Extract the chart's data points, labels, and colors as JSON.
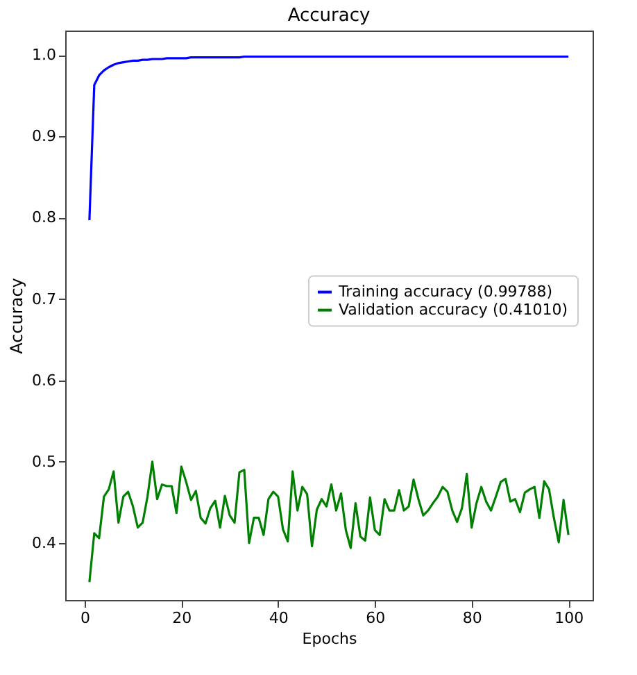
{
  "chart_data": {
    "type": "line",
    "title": "Accuracy",
    "xlabel": "Epochs",
    "ylabel": "Accuracy",
    "x": [
      1,
      2,
      3,
      4,
      5,
      6,
      7,
      8,
      9,
      10,
      11,
      12,
      13,
      14,
      15,
      16,
      17,
      18,
      19,
      20,
      21,
      22,
      23,
      24,
      25,
      26,
      27,
      28,
      29,
      30,
      31,
      32,
      33,
      34,
      35,
      36,
      37,
      38,
      39,
      40,
      41,
      42,
      43,
      44,
      45,
      46,
      47,
      48,
      49,
      50,
      51,
      52,
      53,
      54,
      55,
      56,
      57,
      58,
      59,
      60,
      61,
      62,
      63,
      64,
      65,
      66,
      67,
      68,
      69,
      70,
      71,
      72,
      73,
      74,
      75,
      76,
      77,
      78,
      79,
      80,
      81,
      82,
      83,
      84,
      85,
      86,
      87,
      88,
      89,
      90,
      91,
      92,
      93,
      94,
      95,
      96,
      97,
      98,
      99,
      100
    ],
    "series": [
      {
        "name": "Training accuracy (0.99788)",
        "color": "#0000ff",
        "values": [
          0.797,
          0.963,
          0.975,
          0.981,
          0.985,
          0.988,
          0.99,
          0.991,
          0.992,
          0.993,
          0.993,
          0.994,
          0.994,
          0.995,
          0.995,
          0.995,
          0.996,
          0.996,
          0.996,
          0.996,
          0.996,
          0.997,
          0.997,
          0.997,
          0.997,
          0.997,
          0.997,
          0.997,
          0.997,
          0.997,
          0.997,
          0.997,
          0.998,
          0.998,
          0.998,
          0.998,
          0.998,
          0.998,
          0.998,
          0.998,
          0.998,
          0.998,
          0.998,
          0.998,
          0.998,
          0.998,
          0.998,
          0.998,
          0.998,
          0.998,
          0.998,
          0.998,
          0.998,
          0.998,
          0.998,
          0.998,
          0.998,
          0.998,
          0.998,
          0.998,
          0.998,
          0.998,
          0.998,
          0.998,
          0.998,
          0.998,
          0.998,
          0.998,
          0.998,
          0.998,
          0.998,
          0.998,
          0.998,
          0.998,
          0.998,
          0.998,
          0.998,
          0.998,
          0.998,
          0.998,
          0.998,
          0.998,
          0.998,
          0.998,
          0.998,
          0.998,
          0.998,
          0.998,
          0.998,
          0.998,
          0.998,
          0.998,
          0.998,
          0.998,
          0.998,
          0.998,
          0.998,
          0.998,
          0.998,
          0.998
        ]
      },
      {
        "name": "Validation accuracy (0.41010)",
        "color": "#008000",
        "values": [
          0.352,
          0.412,
          0.406,
          0.457,
          0.466,
          0.488,
          0.425,
          0.457,
          0.463,
          0.445,
          0.419,
          0.425,
          0.457,
          0.5,
          0.454,
          0.472,
          0.47,
          0.47,
          0.437,
          0.494,
          0.475,
          0.453,
          0.464,
          0.431,
          0.424,
          0.443,
          0.452,
          0.419,
          0.458,
          0.434,
          0.425,
          0.487,
          0.49,
          0.4,
          0.431,
          0.431,
          0.41,
          0.454,
          0.463,
          0.457,
          0.417,
          0.402,
          0.488,
          0.44,
          0.469,
          0.46,
          0.396,
          0.441,
          0.454,
          0.445,
          0.472,
          0.44,
          0.461,
          0.416,
          0.394,
          0.449,
          0.408,
          0.403,
          0.456,
          0.416,
          0.41,
          0.454,
          0.44,
          0.44,
          0.465,
          0.44,
          0.445,
          0.478,
          0.454,
          0.434,
          0.44,
          0.449,
          0.457,
          0.469,
          0.463,
          0.44,
          0.426,
          0.443,
          0.485,
          0.419,
          0.449,
          0.469,
          0.451,
          0.44,
          0.457,
          0.475,
          0.479,
          0.451,
          0.454,
          0.438,
          0.462,
          0.466,
          0.469,
          0.431,
          0.476,
          0.466,
          0.431,
          0.401,
          0.453,
          0.41
        ]
      }
    ],
    "xlim": [
      -4,
      105
    ],
    "xticks": [
      0,
      20,
      40,
      60,
      80,
      100
    ],
    "ylim": [
      0.33,
      1.03
    ],
    "yticks": [
      0.4,
      0.5,
      0.6,
      0.7,
      0.8,
      0.9,
      {
        "value": 1,
        "label": "1.0"
      }
    ],
    "grid": false,
    "legend": "right",
    "marker": "none",
    "line_style": "solid"
  }
}
